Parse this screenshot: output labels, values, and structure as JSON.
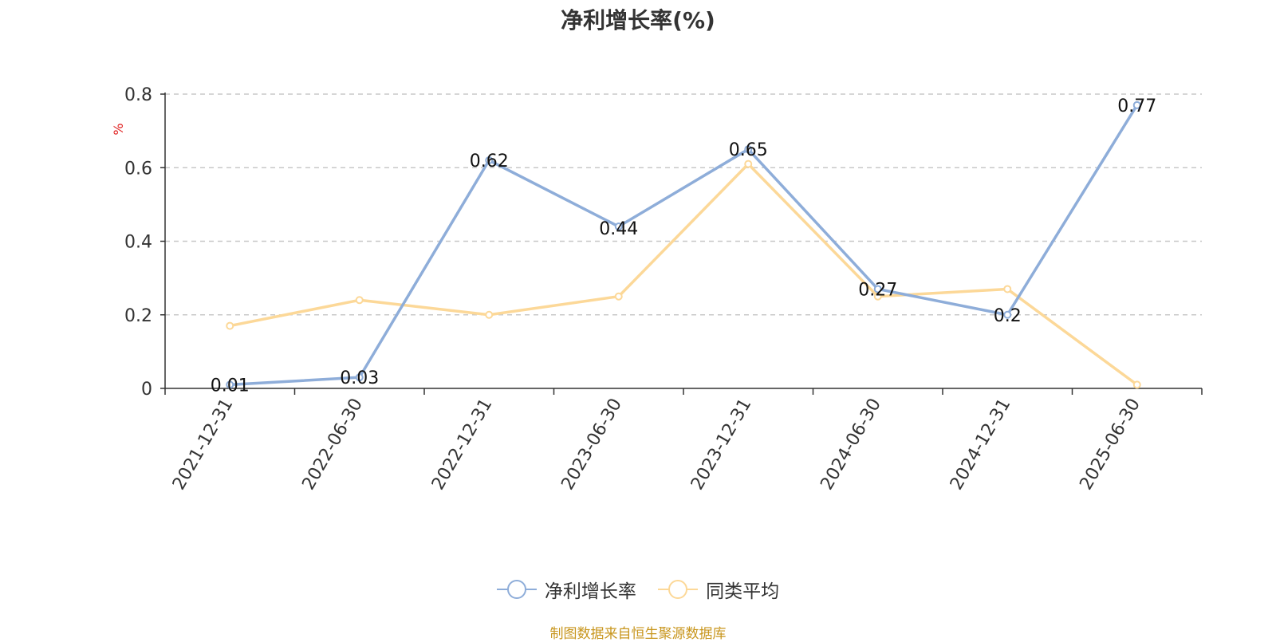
{
  "chart_data": {
    "type": "line",
    "title": "净利增长率(%)",
    "ylabel": "%",
    "xlabel": "",
    "categories": [
      "2021-12-31",
      "2022-06-30",
      "2022-12-31",
      "2023-06-30",
      "2023-12-31",
      "2024-06-30",
      "2024-12-31",
      "2025-06-30"
    ],
    "ylim": [
      0,
      0.8
    ],
    "yticks": [
      "0",
      "0.2",
      "0.4",
      "0.6",
      "0.8"
    ],
    "grid": true,
    "legend_position": "bottom",
    "series": [
      {
        "name": "净利增长率",
        "color": "#8eadd9",
        "values": [
          0.01,
          0.03,
          0.62,
          0.44,
          0.65,
          0.27,
          0.2,
          0.77
        ],
        "labels": [
          "0.01",
          "0.03",
          "0.62",
          "0.44",
          "0.65",
          "0.27",
          "0.2",
          "0.77"
        ]
      },
      {
        "name": "同类平均",
        "color": "#fcd898",
        "values": [
          0.17,
          0.24,
          0.2,
          0.25,
          0.61,
          0.25,
          0.27,
          0.01
        ]
      }
    ]
  },
  "source": {
    "text": "制图数据来自恒生聚源数据库",
    "color": "#c8961e"
  },
  "ylabel_color": "#e02020"
}
